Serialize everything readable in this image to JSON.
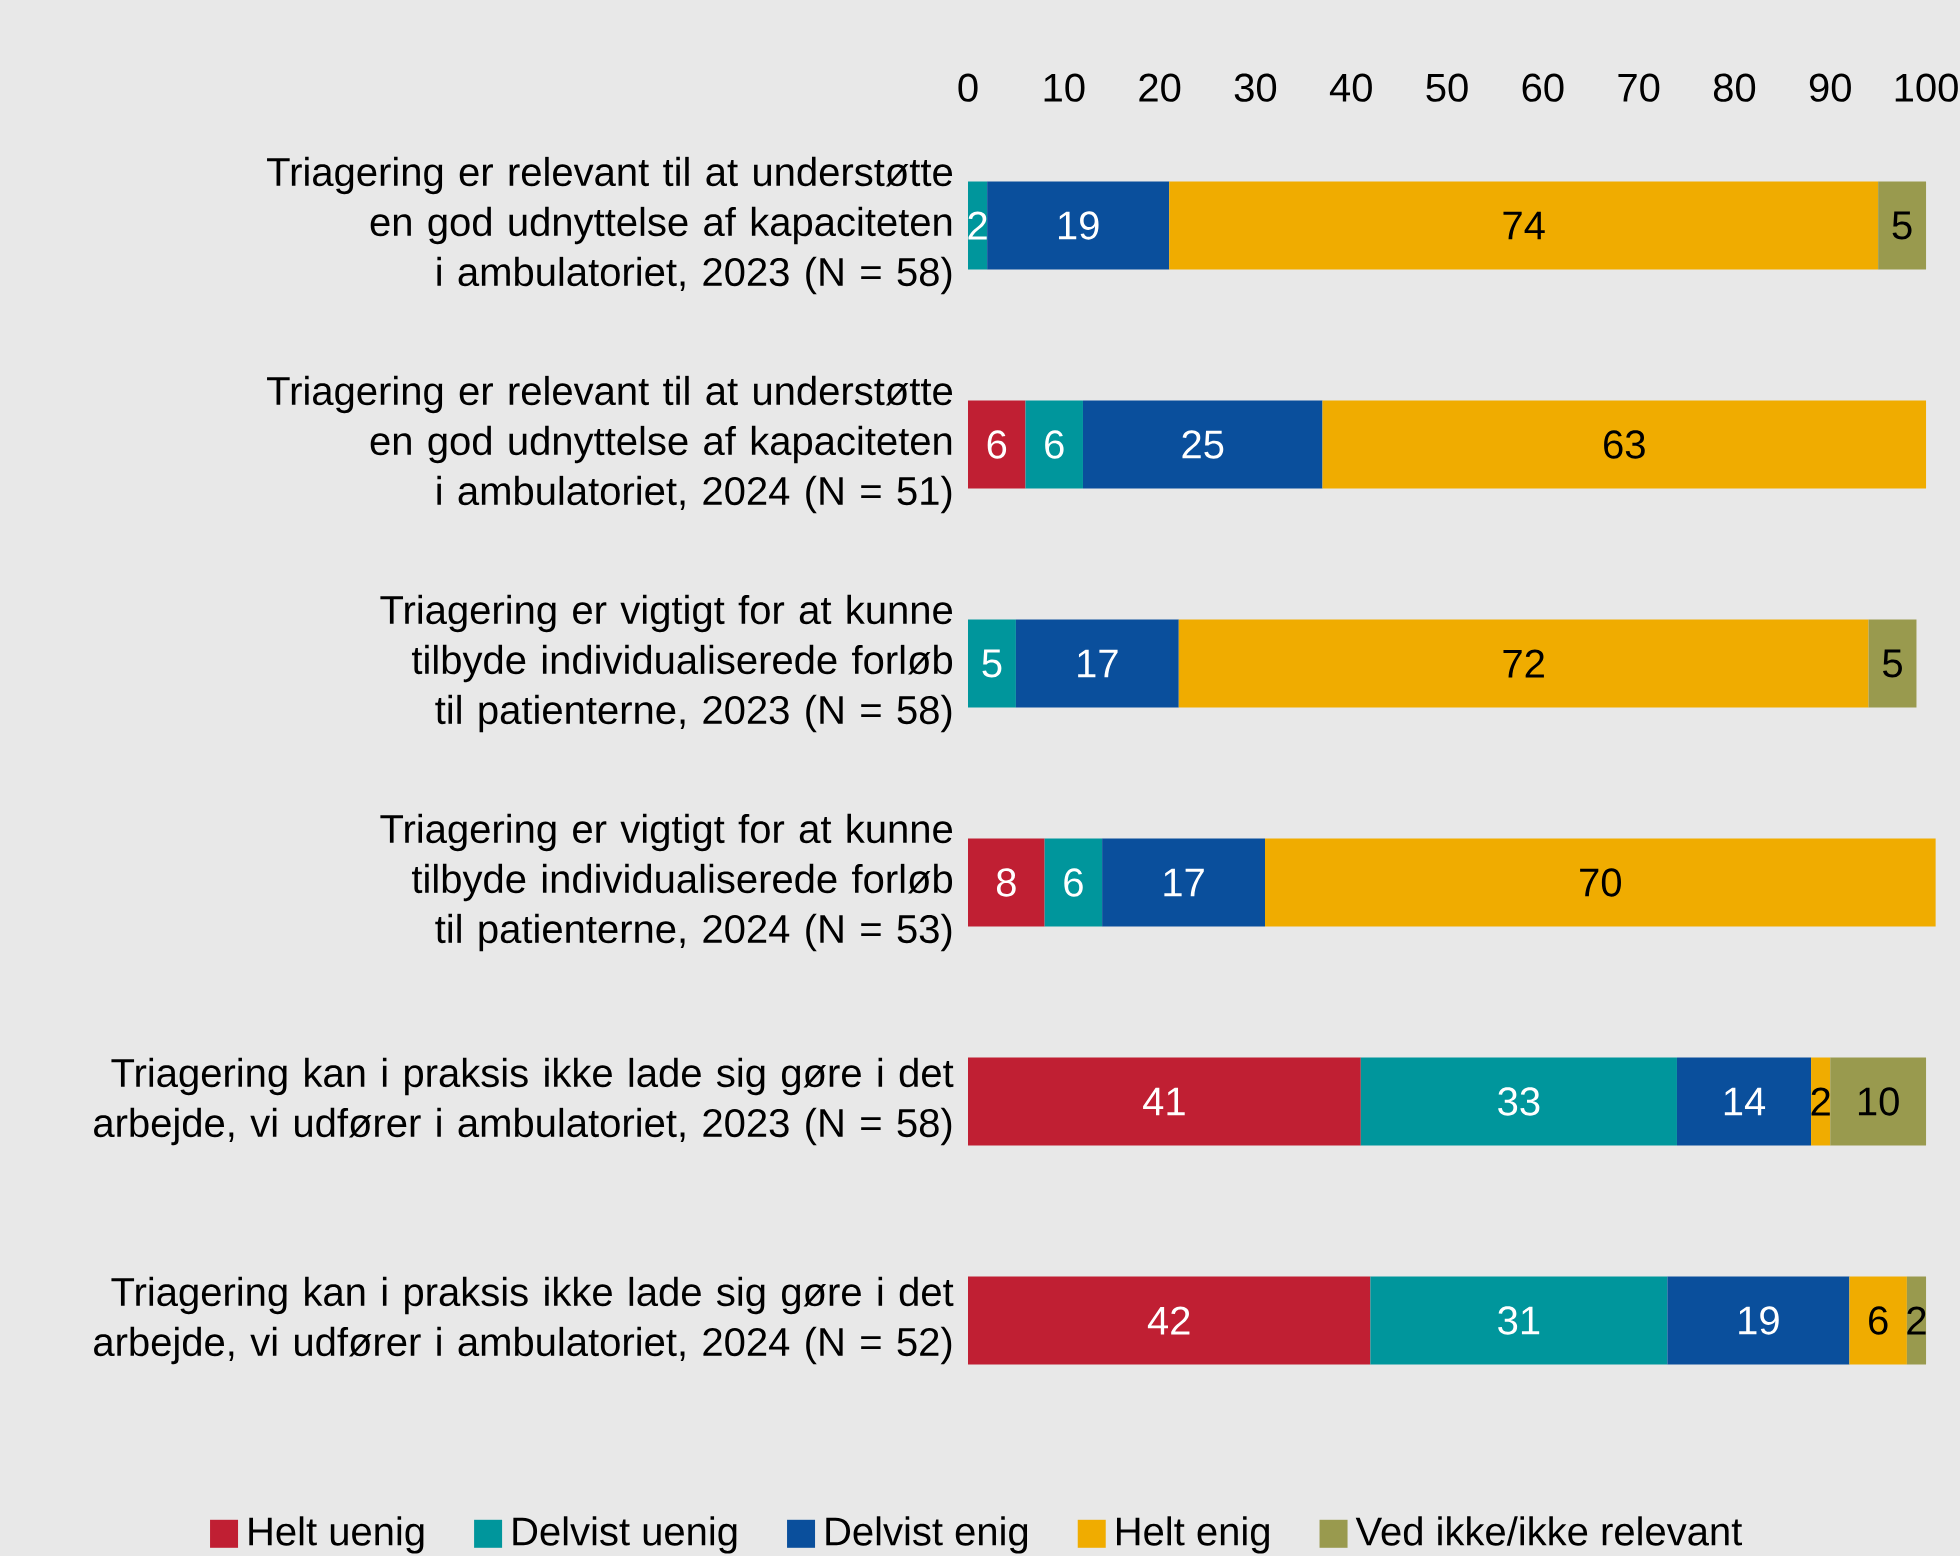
{
  "chart_data": {
    "type": "bar",
    "orientation": "horizontal",
    "stacked": true,
    "data_labels": true,
    "legend": "bottom",
    "grid": false,
    "categories": [
      "Triagering er relevant til at understøtte en god udnyttelse af kapaciteten i ambulatoriet, 2023 (N = 58)",
      "Triagering er relevant til at understøtte en god udnyttelse af kapaciteten i ambulatoriet, 2024 (N = 51)",
      "Triagering er vigtigt for at kunne tilbyde individualiserede forløb til patienterne, 2023 (N = 58)",
      "Triagering er vigtigt for at kunne tilbyde individualiserede forløb til patienterne, 2024 (N = 53)",
      "Triagering kan i praksis ikke lade sig gøre i det arbejde, vi udfører i ambulatoriet, 2023 (N = 58)",
      "Triagering kan i praksis ikke lade sig gøre i det arbejde, vi udfører i ambulatoriet, 2024 (N = 52)"
    ],
    "xlim": [
      0,
      102
    ],
    "xticks": [
      0,
      10,
      20,
      30,
      40,
      50,
      60,
      70,
      80,
      90,
      100
    ],
    "series": [
      {
        "name": "Helt uenig",
        "color": "#c01f33",
        "values": [
          null,
          6,
          null,
          8,
          41,
          42
        ]
      },
      {
        "name": "Delvist uenig",
        "color": "#00969c",
        "values": [
          2,
          6,
          5,
          6,
          33,
          31
        ]
      },
      {
        "name": "Delvist enig",
        "color": "#0a4f9c",
        "values": [
          19,
          25,
          17,
          17,
          14,
          19
        ]
      },
      {
        "name": "Helt enig",
        "color": "#f0ac00",
        "values": [
          74,
          63,
          72,
          70,
          2,
          6
        ]
      },
      {
        "name": "Ved ikke/ikke relevant",
        "color": "#999a4e",
        "values": [
          5,
          null,
          5,
          null,
          10,
          2
        ]
      }
    ]
  }
}
